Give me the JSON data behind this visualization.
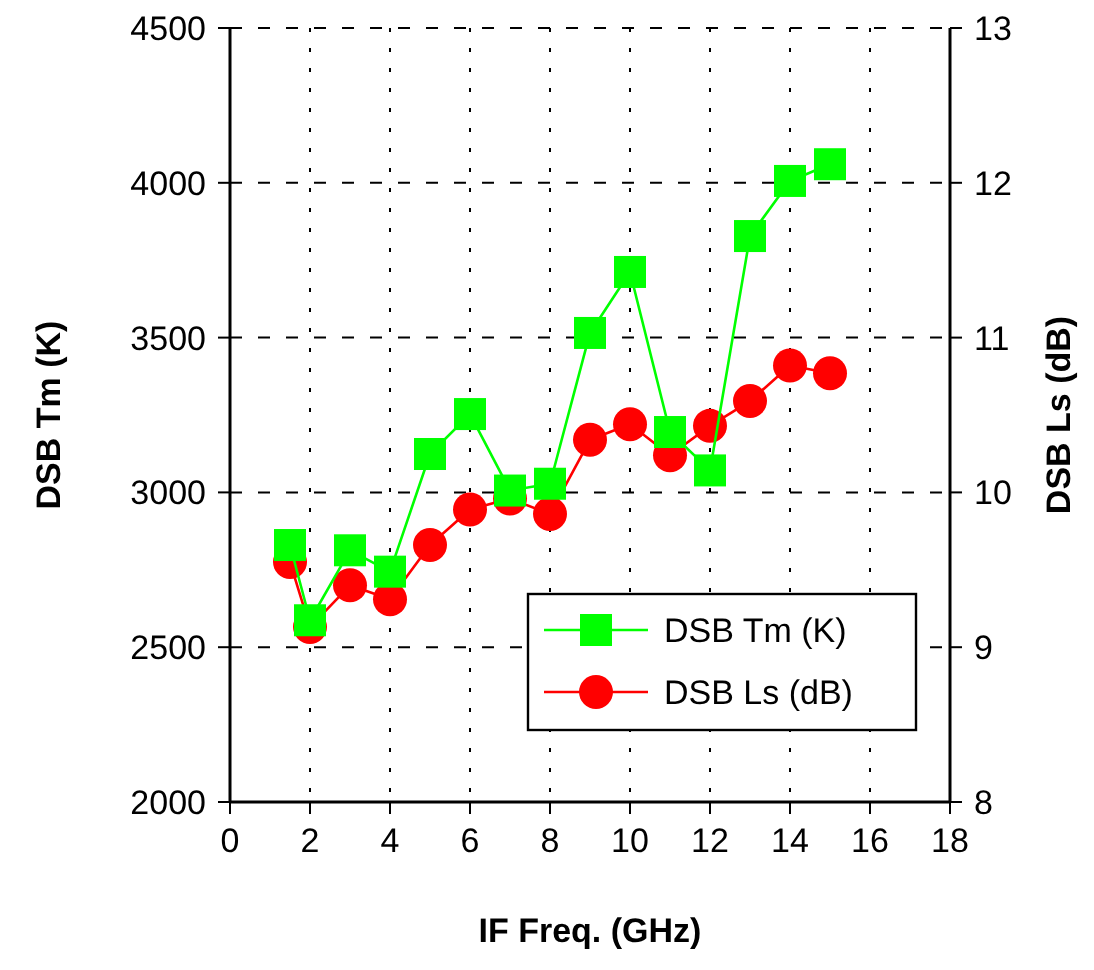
{
  "chart_data": {
    "type": "line",
    "xlabel": "IF Freq. (GHz)",
    "ylabel": "DSB Tm (K)",
    "y2label": "DSB Ls (dB)",
    "x": [
      1.5,
      2,
      3,
      4,
      5,
      6,
      7,
      8,
      9,
      10,
      11,
      12,
      13,
      14,
      15
    ],
    "xlim": [
      0,
      18
    ],
    "xticks": [
      0,
      2,
      4,
      6,
      8,
      10,
      12,
      14,
      16,
      18
    ],
    "ylim": [
      2000,
      4500
    ],
    "yticks": [
      2000,
      2500,
      3000,
      3500,
      4000,
      4500
    ],
    "y2lim": [
      8,
      13
    ],
    "y2ticks": [
      8,
      9,
      10,
      11,
      12,
      13
    ],
    "grid": true,
    "legend": "bottom right",
    "line_style": "solid",
    "series": [
      {
        "name": "DSB Tm (K)",
        "color": "#00ff00",
        "marker": "square",
        "values": [
          2830,
          2587,
          2813,
          2744,
          3124,
          3253,
          3006,
          3028,
          3515,
          3712,
          3195,
          3071,
          3828,
          4006,
          4060
        ]
      },
      {
        "name": "DSB Ls (dB)",
        "color": "#ff0000",
        "marker": "circle",
        "axis": "y2",
        "values": [
          9.55,
          9.13,
          9.4,
          9.31,
          9.66,
          9.89,
          9.96,
          9.86,
          10.34,
          10.44,
          10.24,
          10.43,
          10.59,
          10.82,
          10.77
        ]
      }
    ]
  }
}
